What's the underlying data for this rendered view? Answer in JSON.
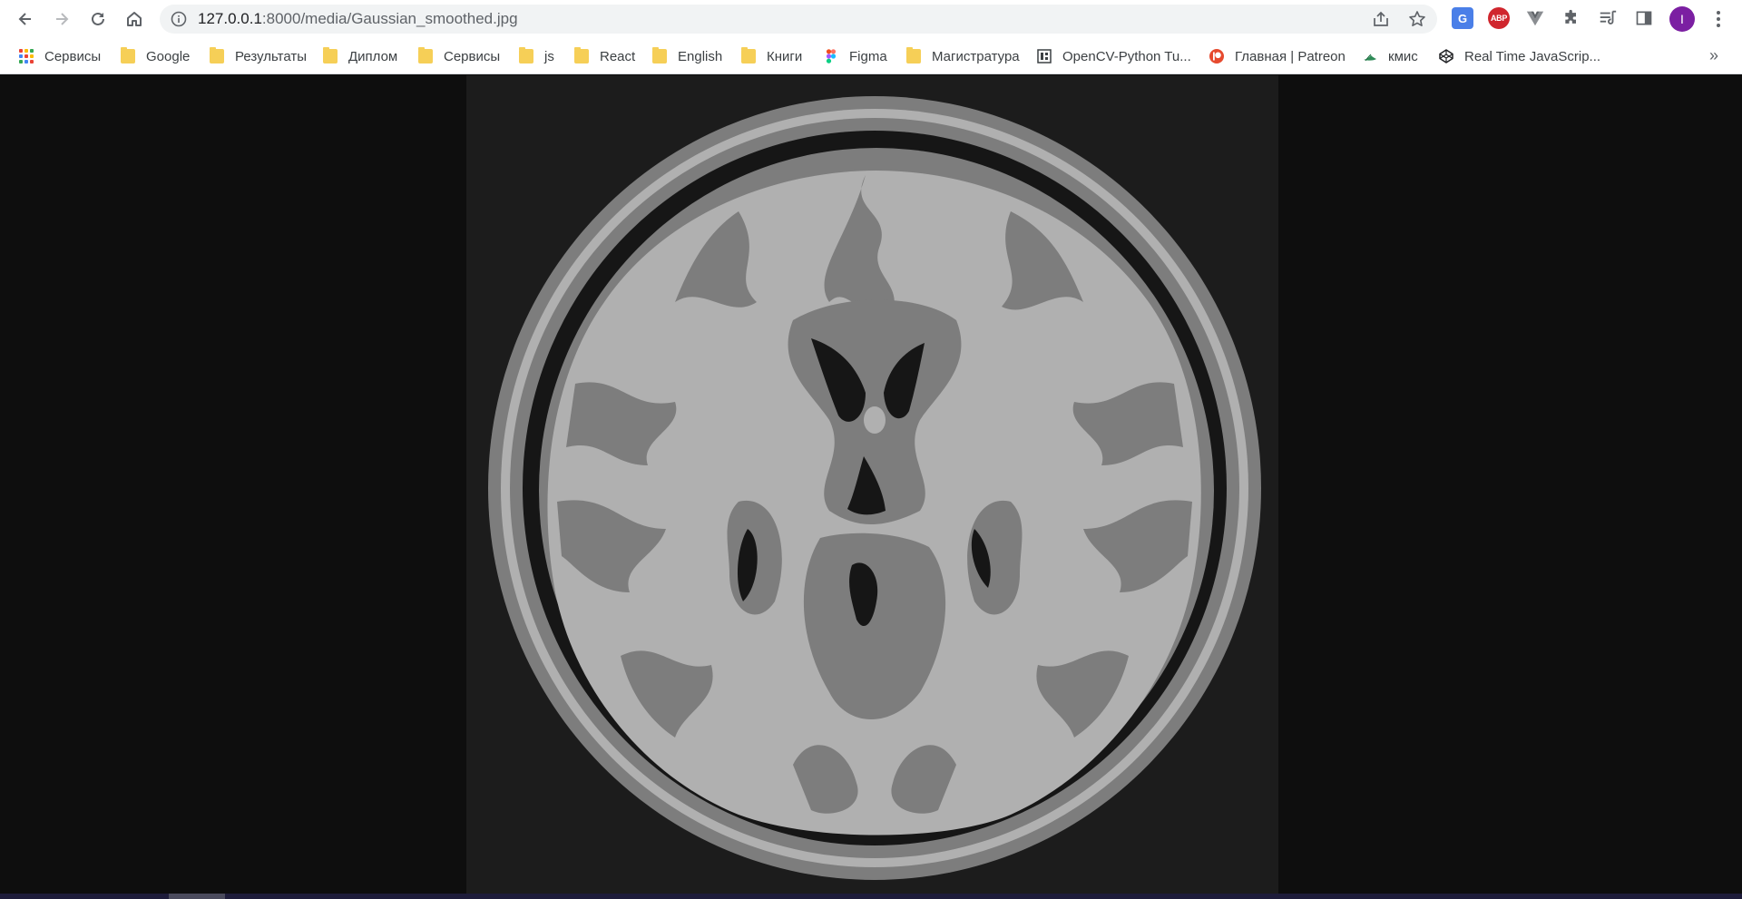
{
  "browser": {
    "url_host": "127.0.0.1",
    "url_path": ":8000/media/Gaussian_smoothed.jpg",
    "profile_initial": "I",
    "ext_abp_label": "ABP",
    "ext_translate_label": "G"
  },
  "bookmarks": [
    {
      "label": "Сервисы",
      "icon": "apps-grid-icon"
    },
    {
      "label": "Google",
      "icon": "folder-icon"
    },
    {
      "label": "Результаты",
      "icon": "folder-icon"
    },
    {
      "label": "Диплом",
      "icon": "folder-icon"
    },
    {
      "label": "Сервисы",
      "icon": "folder-icon"
    },
    {
      "label": "js",
      "icon": "folder-icon"
    },
    {
      "label": "React",
      "icon": "folder-icon"
    },
    {
      "label": "English",
      "icon": "folder-icon"
    },
    {
      "label": "Книги",
      "icon": "folder-icon"
    },
    {
      "label": "Figma",
      "icon": "figma-icon"
    },
    {
      "label": "Магистратура",
      "icon": "folder-icon"
    },
    {
      "label": "OpenCV-Python Tu...",
      "icon": "page-icon"
    },
    {
      "label": "Главная | Patreon",
      "icon": "patreon-icon"
    },
    {
      "label": "кмис",
      "icon": "leaf-icon"
    },
    {
      "label": "Real Time JavaScrip...",
      "icon": "codepen-icon"
    }
  ],
  "bookmarks_overflow": "»",
  "colors": {
    "page_background": "#0e0e0e",
    "image_background": "#1c1c1c",
    "brain_dark": "#161616",
    "brain_mid": "#7d7d7d",
    "brain_light": "#b0b0b0",
    "profile": "#7b1fa2"
  }
}
